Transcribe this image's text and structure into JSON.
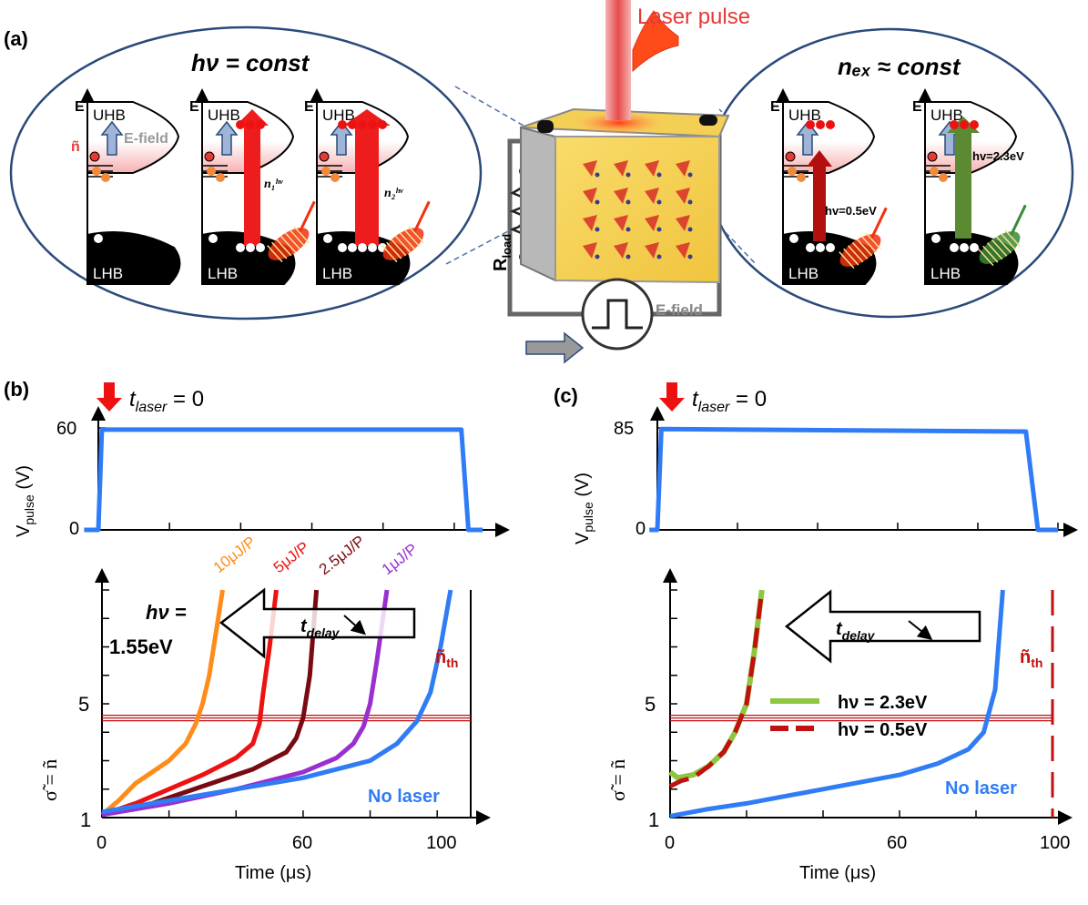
{
  "panel_a": {
    "label": "(a)",
    "laser_label": "Laser pulse",
    "left_title": "hν = const",
    "right_title": "nₑₓ ≈ const",
    "band_upper": "UHB",
    "band_lower": "LHB",
    "energy_axis": "E",
    "efield_label": "E-field",
    "ntilde": "ñ",
    "n1": "n₁ʰᵛ",
    "n2": "n₂ʰᵛ",
    "photon1": "hv=0.5eV",
    "photon2": "hv=2.3eV",
    "rload": "R",
    "rload_sub": "load",
    "source_label": "E-field",
    "colors": {
      "laser": "#e53935",
      "red_arrow": "#ee1c1c",
      "green_arrow": "#5b8a32",
      "blue": "#1f6fff"
    }
  },
  "panel_b": {
    "label": "(b)",
    "tlaser": "t",
    "tlaser_sub": "laser",
    "tlaser_eq": " = 0",
    "vpulse_label": "V",
    "vpulse_sub": "pulse",
    "vpulse_unit": " (V)",
    "v_ticks": [
      "60",
      "0"
    ],
    "sigma_label": "σ̃ = ñ",
    "sigma_ticks": [
      "5",
      "1"
    ],
    "x_ticks": [
      "0",
      "60",
      "100"
    ],
    "xlabel": "Time (μs)",
    "hv_line1": "hν =",
    "hv_line2": "1.55eV",
    "tdelay": "t",
    "tdelay_sub": "delay",
    "nth": "ñ",
    "nth_sub": "th",
    "no_laser": "No laser",
    "series_labels": [
      "10μJ/P",
      "5μJ/P",
      "2.5μJ/P",
      "1μJ/P"
    ]
  },
  "panel_c": {
    "label": "(c)",
    "tlaser": "t",
    "tlaser_sub": "laser",
    "tlaser_eq": " = 0",
    "vpulse_label": "V",
    "vpulse_sub": "pulse",
    "vpulse_unit": " (V)",
    "v_ticks": [
      "85",
      "0"
    ],
    "sigma_label": "σ̃ = ñ",
    "sigma_ticks": [
      "5",
      "1"
    ],
    "x_ticks": [
      "0",
      "60",
      "100"
    ],
    "xlabel": "Time (μs)",
    "tdelay": "t",
    "tdelay_sub": "delay",
    "nth": "ñ",
    "nth_sub": "th",
    "no_laser": "No laser",
    "legend": [
      "hν = 2.3eV",
      "hν = 0.5eV"
    ]
  },
  "chart_data": [
    {
      "type": "line",
      "panel": "b-top",
      "ylabel": "Vpulse (V)",
      "xlim": [
        0,
        110
      ],
      "ylim": [
        0,
        60
      ],
      "series": [
        {
          "color": "#2f7cf6",
          "x": [
            -4,
            0,
            1,
            102,
            104,
            108
          ],
          "y": [
            0,
            0,
            59,
            59,
            0,
            0
          ]
        }
      ]
    },
    {
      "type": "line",
      "panel": "b-bottom",
      "xlabel": "Time (μs)",
      "ylabel": "σ̃ = ñ",
      "xlim": [
        0,
        110
      ],
      "ylim": [
        1,
        9
      ],
      "threshold": 4.5,
      "series": [
        {
          "name": "10μJ/P",
          "color": "#ff8c1a",
          "x": [
            0,
            5,
            10,
            15,
            20,
            25,
            28,
            30,
            32,
            34,
            36
          ],
          "y": [
            1.1,
            1.6,
            2.2,
            2.6,
            3.0,
            3.6,
            4.3,
            5.0,
            6.0,
            7.5,
            9
          ]
        },
        {
          "name": "5μJ/P",
          "color": "#ee1111",
          "x": [
            0,
            10,
            20,
            30,
            40,
            45,
            47,
            48,
            50,
            52
          ],
          "y": [
            1.1,
            1.5,
            2.0,
            2.5,
            3.1,
            3.6,
            4.3,
            5.3,
            7.0,
            9
          ]
        },
        {
          "name": "2.5μJ/P",
          "color": "#7a0a12",
          "x": [
            0,
            15,
            30,
            45,
            55,
            58,
            60,
            62,
            64
          ],
          "y": [
            1.1,
            1.5,
            2.1,
            2.7,
            3.3,
            3.8,
            4.5,
            6.0,
            9
          ]
        },
        {
          "name": "1μJ/P",
          "color": "#9a2fd0",
          "x": [
            0,
            20,
            40,
            60,
            70,
            75,
            78,
            80,
            82,
            85
          ],
          "y": [
            1.1,
            1.5,
            2.0,
            2.6,
            3.1,
            3.6,
            4.2,
            5.0,
            6.5,
            9
          ]
        },
        {
          "name": "No laser",
          "color": "#2f7cf6",
          "x": [
            0,
            20,
            40,
            60,
            80,
            88,
            94,
            98,
            101,
            104
          ],
          "y": [
            1.2,
            1.6,
            2.0,
            2.4,
            3.0,
            3.6,
            4.4,
            5.4,
            7.0,
            9
          ]
        }
      ]
    },
    {
      "type": "line",
      "panel": "c-top",
      "ylabel": "Vpulse (V)",
      "xlim": [
        0,
        100
      ],
      "ylim": [
        0,
        85
      ],
      "series": [
        {
          "color": "#2f7cf6",
          "x": [
            -2,
            0,
            1,
            92,
            95,
            100
          ],
          "y": [
            0,
            0,
            84,
            82,
            0,
            0
          ]
        }
      ]
    },
    {
      "type": "line",
      "panel": "c-bottom",
      "xlabel": "Time (μs)",
      "ylabel": "σ̃ = ñ",
      "xlim": [
        0,
        100
      ],
      "ylim": [
        1,
        9
      ],
      "threshold": 4.5,
      "series": [
        {
          "name": "hν = 2.3eV",
          "color": "#8dc63f",
          "x": [
            0,
            2,
            6,
            10,
            14,
            17,
            20,
            22,
            24
          ],
          "y": [
            2.6,
            2.4,
            2.5,
            2.8,
            3.3,
            4.0,
            5.0,
            6.8,
            9
          ]
        },
        {
          "name": "hν = 0.5eV",
          "color": "#c21010",
          "x": [
            0,
            3,
            6,
            10,
            14,
            17,
            20,
            22,
            24
          ],
          "y": [
            2.1,
            2.3,
            2.4,
            2.8,
            3.3,
            4.0,
            5.0,
            6.8,
            9
          ]
        },
        {
          "name": "No laser",
          "color": "#2f7cf6",
          "x": [
            0,
            10,
            20,
            30,
            40,
            50,
            60,
            70,
            78,
            82,
            85,
            87
          ],
          "y": [
            1.05,
            1.3,
            1.5,
            1.75,
            2.0,
            2.25,
            2.5,
            2.9,
            3.4,
            4.0,
            5.5,
            9
          ]
        }
      ]
    }
  ]
}
